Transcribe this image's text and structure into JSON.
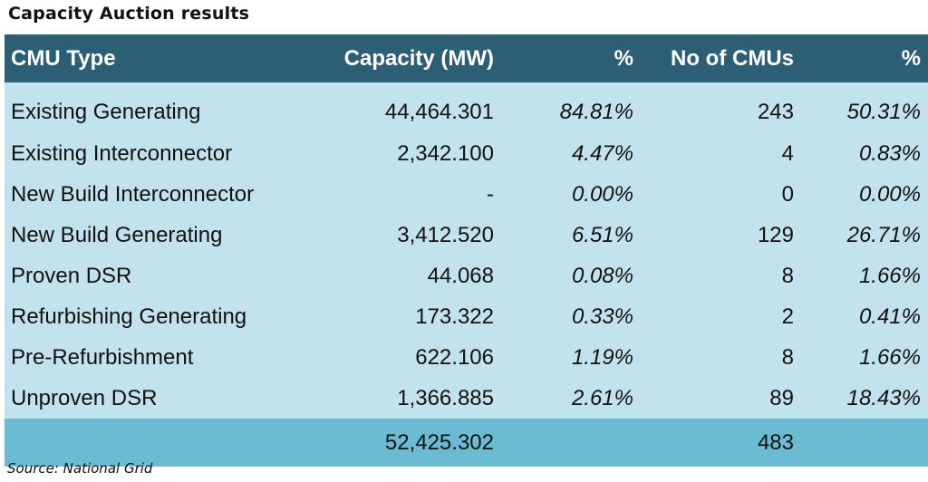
{
  "title": "Capacity Auction results",
  "table": {
    "headers": {
      "type": "CMU Type",
      "capacity": "Capacity (MW)",
      "pct_capacity": "%",
      "cmus": "No of CMUs",
      "pct_cmus": "%"
    },
    "rows": [
      {
        "type": "Existing Generating",
        "capacity": "44,464.301",
        "pct_capacity": "84.81%",
        "cmus": "243",
        "pct_cmus": "50.31%"
      },
      {
        "type": "Existing Interconnector",
        "capacity": "2,342.100",
        "pct_capacity": "4.47%",
        "cmus": "4",
        "pct_cmus": "0.83%"
      },
      {
        "type": "New Build Interconnector",
        "capacity": "-",
        "pct_capacity": "0.00%",
        "cmus": "0",
        "pct_cmus": "0.00%"
      },
      {
        "type": "New Build Generating",
        "capacity": "3,412.520",
        "pct_capacity": "6.51%",
        "cmus": "129",
        "pct_cmus": "26.71%"
      },
      {
        "type": "Proven DSR",
        "capacity": "44.068",
        "pct_capacity": "0.08%",
        "cmus": "8",
        "pct_cmus": "1.66%"
      },
      {
        "type": "Refurbishing Generating",
        "capacity": "173.322",
        "pct_capacity": "0.33%",
        "cmus": "2",
        "pct_cmus": "0.41%"
      },
      {
        "type": "Pre-Refurbishment",
        "capacity": "622.106",
        "pct_capacity": "1.19%",
        "cmus": "8",
        "pct_cmus": "1.66%"
      },
      {
        "type": "Unproven DSR",
        "capacity": "1,366.885",
        "pct_capacity": "2.61%",
        "cmus": "89",
        "pct_cmus": "18.43%"
      }
    ],
    "total": {
      "type": "",
      "capacity": "52,425.302",
      "pct_capacity": "",
      "cmus": "483",
      "pct_cmus": ""
    }
  },
  "source": "Source: National Grid",
  "colors": {
    "header_bg": "#2c5e75",
    "row_bg": "#c2e3ed",
    "total_bg": "#6bbcd3"
  }
}
